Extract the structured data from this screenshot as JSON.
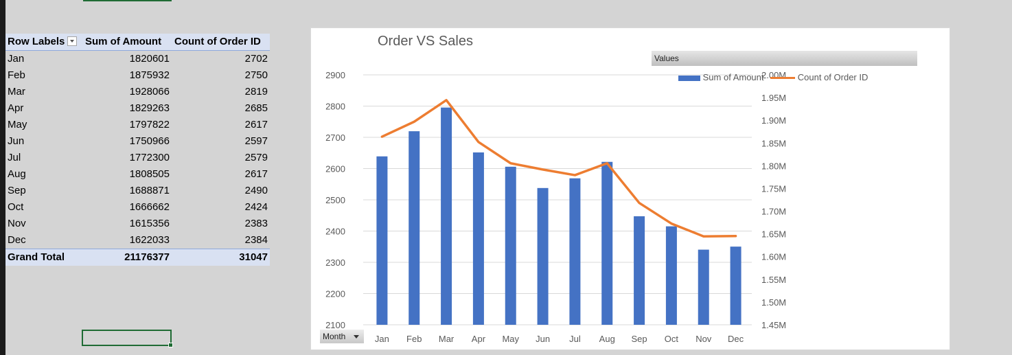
{
  "pivot": {
    "headers": {
      "row_labels": "Row Labels",
      "sum": "Sum of Amount",
      "count": "Count of Order ID"
    },
    "rows": [
      {
        "label": "Jan",
        "sum": "1820601",
        "count": "2702"
      },
      {
        "label": "Feb",
        "sum": "1875932",
        "count": "2750"
      },
      {
        "label": "Mar",
        "sum": "1928066",
        "count": "2819"
      },
      {
        "label": "Apr",
        "sum": "1829263",
        "count": "2685"
      },
      {
        "label": "May",
        "sum": "1797822",
        "count": "2617"
      },
      {
        "label": "Jun",
        "sum": "1750966",
        "count": "2597"
      },
      {
        "label": "Jul",
        "sum": "1772300",
        "count": "2579"
      },
      {
        "label": "Aug",
        "sum": "1808505",
        "count": "2617"
      },
      {
        "label": "Sep",
        "sum": "1688871",
        "count": "2490"
      },
      {
        "label": "Oct",
        "sum": "1666662",
        "count": "2424"
      },
      {
        "label": "Nov",
        "sum": "1615356",
        "count": "2383"
      },
      {
        "label": "Dec",
        "sum": "1622033",
        "count": "2384"
      }
    ],
    "total": {
      "label": "Grand Total",
      "sum": "21176377",
      "count": "31047"
    }
  },
  "chart_ui": {
    "values_button": "Values",
    "month_button": "Month"
  },
  "chart_data": {
    "type": "bar",
    "title": "Order VS Sales",
    "categories": [
      "Jan",
      "Feb",
      "Mar",
      "Apr",
      "May",
      "Jun",
      "Jul",
      "Aug",
      "Sep",
      "Oct",
      "Nov",
      "Dec"
    ],
    "series": [
      {
        "name": "Sum of Amount",
        "type": "bar",
        "axis": "right",
        "color": "#4472c4",
        "values": [
          1820601,
          1875932,
          1928066,
          1829263,
          1797822,
          1750966,
          1772300,
          1808505,
          1688871,
          1666662,
          1615356,
          1622033
        ]
      },
      {
        "name": "Count of Order ID",
        "type": "line",
        "axis": "left",
        "color": "#ed7d31",
        "values": [
          2702,
          2750,
          2819,
          2685,
          2617,
          2597,
          2579,
          2617,
          2490,
          2424,
          2383,
          2384
        ]
      }
    ],
    "y_left": {
      "min": 2100,
      "max": 2900,
      "ticks": [
        "2900",
        "2800",
        "2700",
        "2600",
        "2500",
        "2400",
        "2300",
        "2200",
        "2100"
      ]
    },
    "y_right": {
      "min": 1450000,
      "max": 2000000,
      "ticks": [
        "2.00M",
        "1.95M",
        "1.90M",
        "1.85M",
        "1.80M",
        "1.75M",
        "1.70M",
        "1.65M",
        "1.60M",
        "1.55M",
        "1.50M",
        "1.45M"
      ]
    },
    "grid": true,
    "legend": "top-right"
  }
}
